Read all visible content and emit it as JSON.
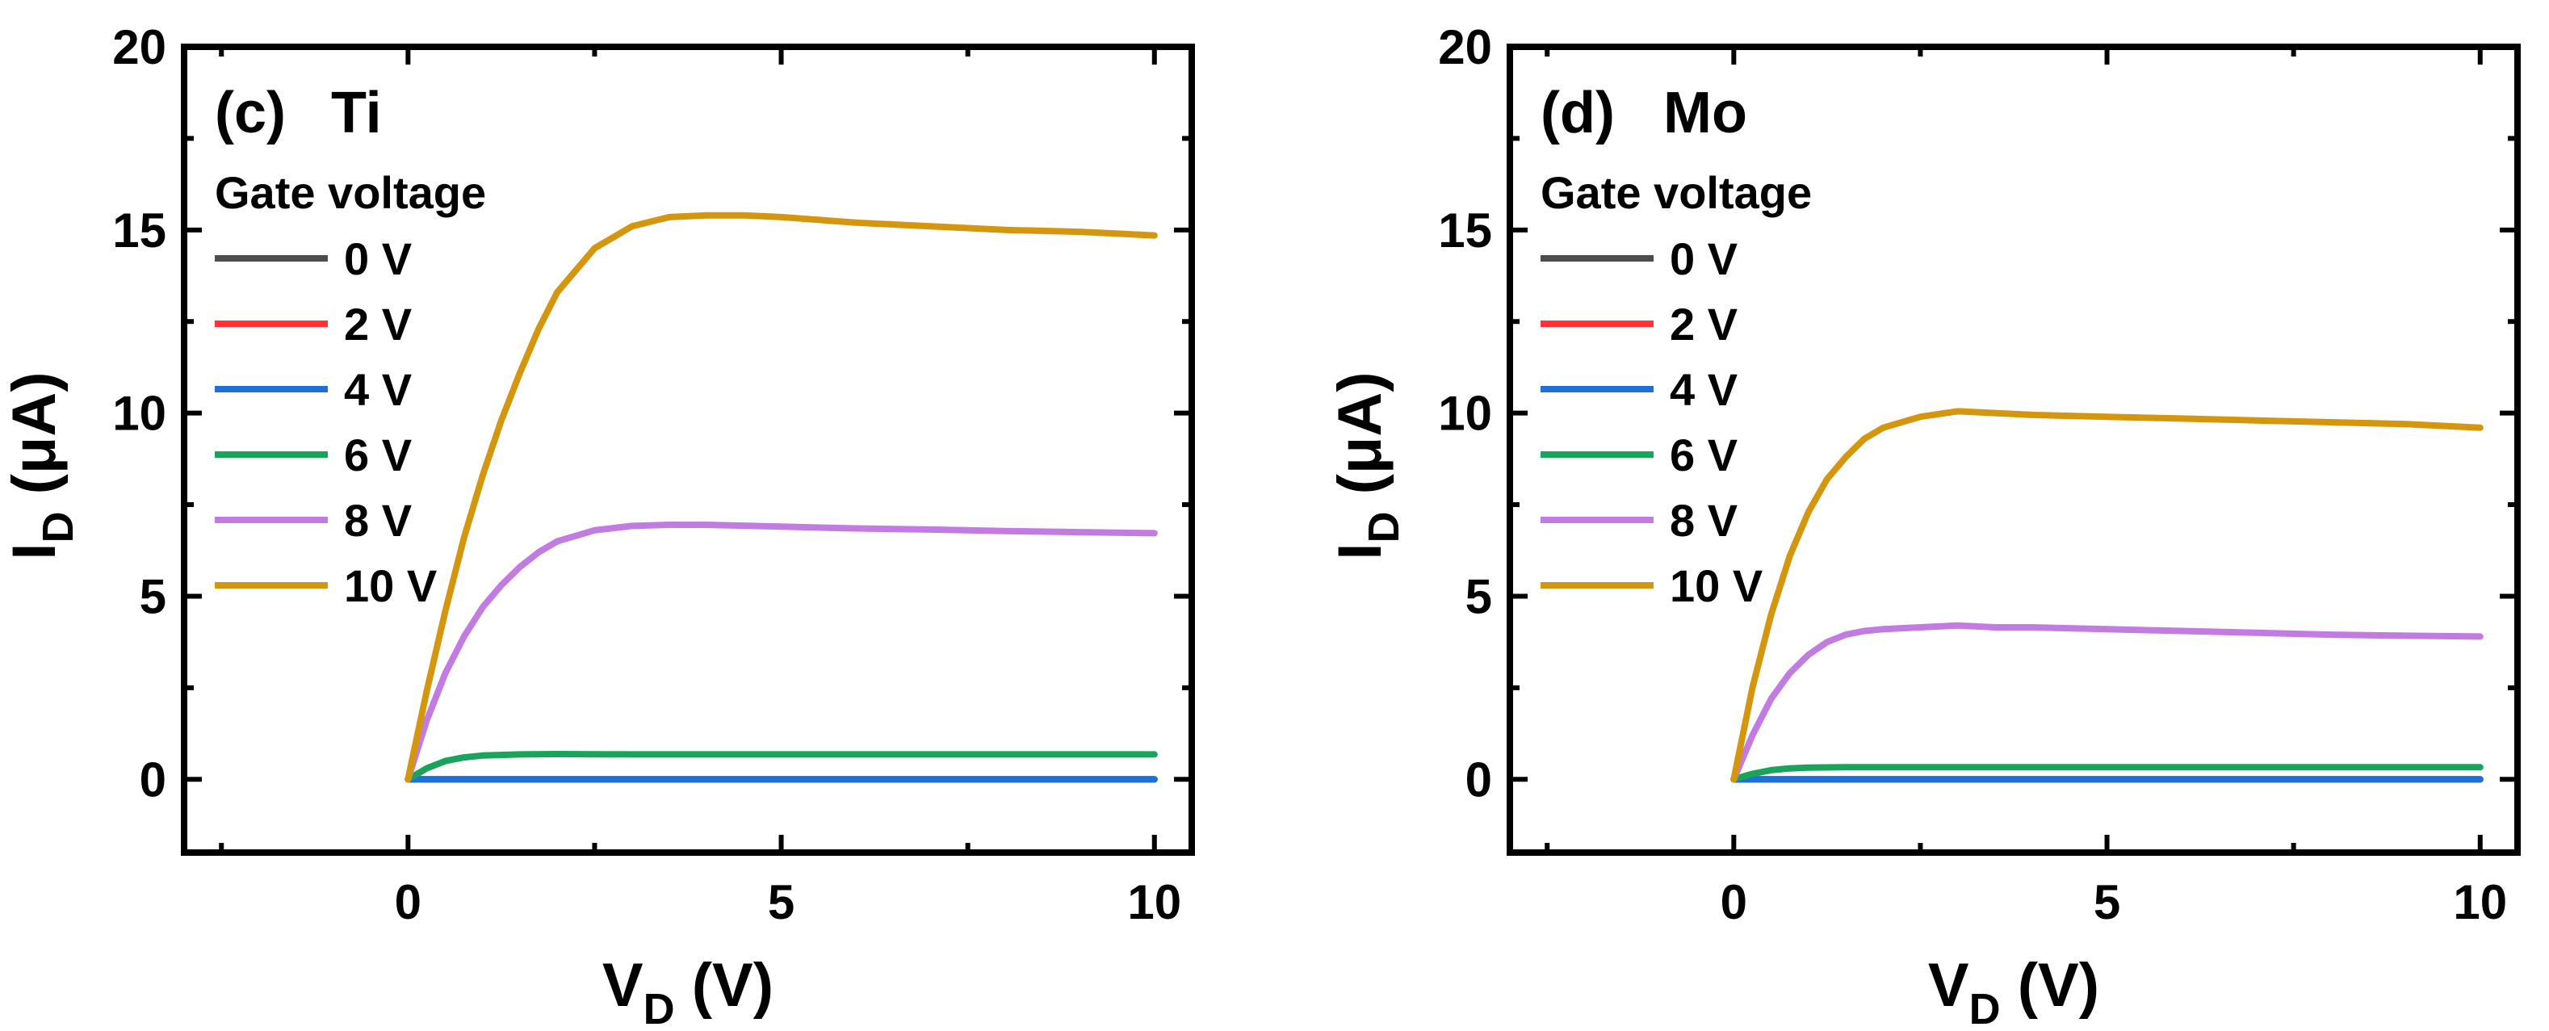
{
  "chart_data": [
    {
      "type": "line",
      "panel": "(c)",
      "title": "Ti",
      "xlabel": {
        "main": "V",
        "sub": "D",
        "unit": " (V)"
      },
      "ylabel": {
        "main": "I",
        "sub": "D",
        "unit": " (μA)"
      },
      "xlim": [
        -3,
        10.5
      ],
      "ylim": [
        -2,
        20
      ],
      "xticks": [
        0,
        5,
        10
      ],
      "yticks": [
        0,
        5,
        10,
        15,
        20
      ],
      "legend_title": "Gate voltage",
      "series": [
        {
          "name": "0 V",
          "color": "#4d4d4d",
          "x": [
            0,
            10
          ],
          "y": [
            0,
            0
          ]
        },
        {
          "name": "2 V",
          "color": "#ff3333",
          "x": [
            0,
            10
          ],
          "y": [
            0,
            0
          ]
        },
        {
          "name": "4 V",
          "color": "#1f6fd8",
          "x": [
            0,
            10
          ],
          "y": [
            0,
            0
          ]
        },
        {
          "name": "6 V",
          "color": "#1aa35a",
          "x": [
            0,
            0.25,
            0.5,
            0.75,
            1,
            1.5,
            2,
            3,
            4,
            5,
            6,
            8,
            10
          ],
          "y": [
            0,
            0.3,
            0.5,
            0.6,
            0.65,
            0.68,
            0.69,
            0.68,
            0.68,
            0.68,
            0.68,
            0.68,
            0.68
          ]
        },
        {
          "name": "8 V",
          "color": "#c27be0",
          "x": [
            0,
            0.25,
            0.5,
            0.75,
            1,
            1.25,
            1.5,
            1.75,
            2,
            2.5,
            3,
            3.5,
            4,
            5,
            6,
            7,
            8,
            9,
            10
          ],
          "y": [
            0,
            1.6,
            2.9,
            3.9,
            4.7,
            5.3,
            5.8,
            6.2,
            6.5,
            6.8,
            6.92,
            6.95,
            6.95,
            6.9,
            6.85,
            6.82,
            6.78,
            6.75,
            6.72
          ]
        },
        {
          "name": "10 V",
          "color": "#d4960f",
          "x": [
            0,
            0.25,
            0.5,
            0.75,
            1,
            1.25,
            1.5,
            1.75,
            2,
            2.5,
            3,
            3.5,
            4,
            4.5,
            5,
            6,
            7,
            8,
            9,
            10
          ],
          "y": [
            0,
            2.4,
            4.6,
            6.6,
            8.3,
            9.8,
            11.1,
            12.3,
            13.3,
            14.5,
            15.1,
            15.35,
            15.4,
            15.4,
            15.35,
            15.2,
            15.1,
            15.0,
            14.95,
            14.85
          ]
        }
      ]
    },
    {
      "type": "line",
      "panel": "(d)",
      "title": "Mo",
      "xlabel": {
        "main": "V",
        "sub": "D",
        "unit": " (V)"
      },
      "ylabel": {
        "main": "I",
        "sub": "D",
        "unit": " (μA)"
      },
      "xlim": [
        -3,
        10.5
      ],
      "ylim": [
        -2,
        20
      ],
      "xticks": [
        0,
        5,
        10
      ],
      "yticks": [
        0,
        5,
        10,
        15,
        20
      ],
      "legend_title": "Gate voltage",
      "series": [
        {
          "name": "0 V",
          "color": "#4d4d4d",
          "x": [
            0,
            10
          ],
          "y": [
            0,
            0
          ]
        },
        {
          "name": "2 V",
          "color": "#ff3333",
          "x": [
            0,
            10
          ],
          "y": [
            0,
            0
          ]
        },
        {
          "name": "4 V",
          "color": "#1f6fd8",
          "x": [
            0,
            10
          ],
          "y": [
            0,
            0
          ]
        },
        {
          "name": "6 V",
          "color": "#1aa35a",
          "x": [
            0,
            0.25,
            0.5,
            0.75,
            1,
            1.5,
            2,
            3,
            5,
            7,
            10
          ],
          "y": [
            0,
            0.15,
            0.25,
            0.3,
            0.32,
            0.33,
            0.33,
            0.33,
            0.33,
            0.33,
            0.33
          ]
        },
        {
          "name": "8 V",
          "color": "#c27be0",
          "x": [
            0,
            0.25,
            0.5,
            0.75,
            1,
            1.25,
            1.5,
            1.75,
            2,
            2.5,
            3,
            3.5,
            4,
            5,
            6,
            7,
            8,
            9,
            10
          ],
          "y": [
            0,
            1.2,
            2.2,
            2.9,
            3.4,
            3.75,
            3.95,
            4.05,
            4.1,
            4.15,
            4.2,
            4.15,
            4.15,
            4.1,
            4.05,
            4.0,
            3.95,
            3.92,
            3.9
          ]
        },
        {
          "name": "10 V",
          "color": "#d4960f",
          "x": [
            0,
            0.25,
            0.5,
            0.75,
            1,
            1.25,
            1.5,
            1.75,
            2,
            2.5,
            3,
            3.5,
            4,
            5,
            6,
            7,
            8,
            9,
            10
          ],
          "y": [
            0,
            2.5,
            4.5,
            6.1,
            7.3,
            8.2,
            8.8,
            9.3,
            9.6,
            9.9,
            10.05,
            10.0,
            9.95,
            9.9,
            9.85,
            9.8,
            9.75,
            9.7,
            9.6
          ]
        }
      ]
    }
  ]
}
